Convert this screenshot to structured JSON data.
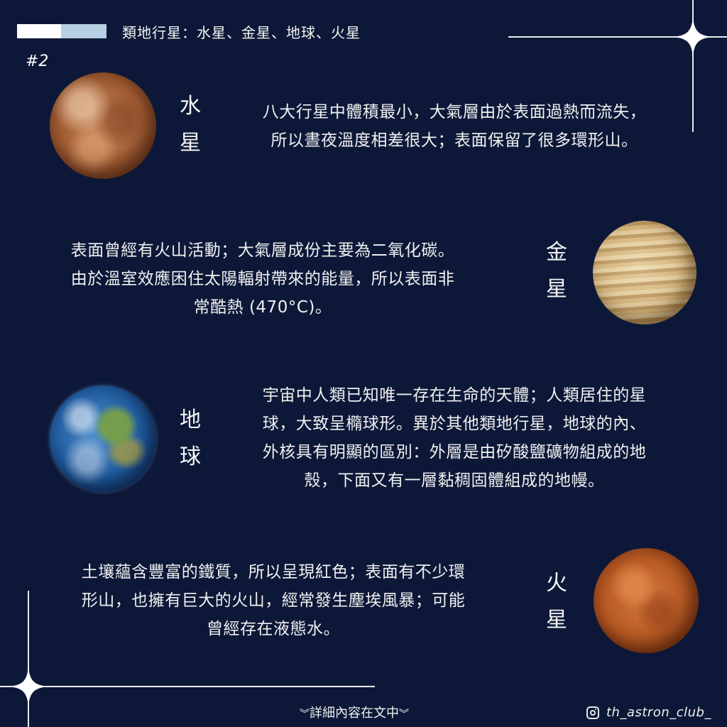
{
  "header": {
    "title": "類地行星：水星、金星、地球、火星",
    "page_number": "#2"
  },
  "colors": {
    "background": "#0d1838",
    "accent_blue": "#b7cfe3",
    "accent_white": "#ffffff"
  },
  "planets": {
    "mercury": {
      "name_line1": "水",
      "name_line2": "星",
      "lines": [
        "八大行星中體積最小，大氣層由於表面過熱而流失，",
        "所以晝夜溫度相差很大；表面保留了很多環形山。"
      ]
    },
    "venus": {
      "name_line1": "金",
      "name_line2": "星",
      "lines": [
        "表面曾經有火山活動；大氣層成份主要為二氧化碳。",
        "由於溫室效應困住太陽輻射帶來的能量，所以表面非",
        "常酷熱 (470°C)。"
      ]
    },
    "earth": {
      "name_line1": "地",
      "name_line2": "球",
      "lines": [
        "宇宙中人類已知唯一存在生命的天體；人類居住的星",
        "球，大致呈橢球形。異於其他類地行星，地球的內、",
        "外核具有明顯的區別：外層是由矽酸鹽礦物組成的地",
        "殼，下面又有一層黏稠固體組成的地幔。"
      ]
    },
    "mars": {
      "name_line1": "火",
      "name_line2": "星",
      "lines": [
        "土壤蘊含豐富的鐵質，所以呈現紅色；表面有不少環",
        "形山，也擁有巨大的火山，經常發生塵埃風暴；可能",
        "曾經存在液態水。"
      ]
    }
  },
  "footer": {
    "chevron_left": "︾",
    "note": "詳細內容在文中",
    "chevron_right": "︾",
    "instagram_icon": "instagram-icon",
    "handle": "th_astron_club_"
  }
}
